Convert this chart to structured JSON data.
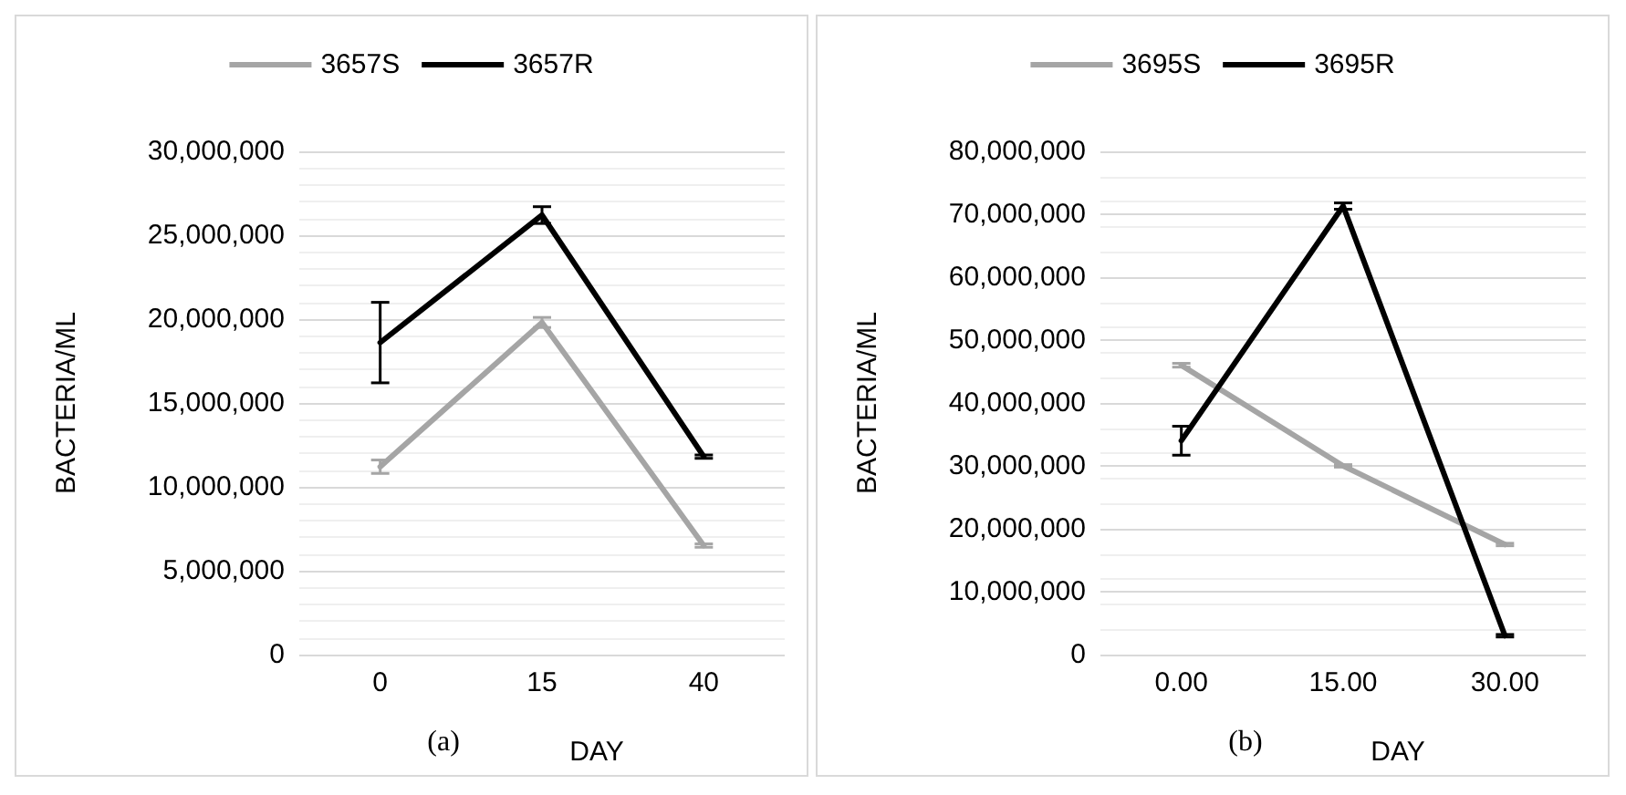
{
  "chart_data": [
    {
      "type": "line",
      "xlabel": "DAY",
      "ylabel": "BACTERIA/ML",
      "categories": [
        "0",
        "15",
        "40"
      ],
      "series": [
        {
          "name": "3657S",
          "color": "#a5a5a5",
          "values": [
            11200000,
            19800000,
            6500000
          ],
          "errors": [
            400000,
            300000,
            100000
          ]
        },
        {
          "name": "3657R",
          "color": "#000000",
          "values": [
            18600000,
            26200000,
            11800000
          ],
          "errors": [
            2400000,
            500000,
            100000
          ]
        }
      ],
      "ylim": [
        0,
        30000000
      ],
      "yticks": [
        0,
        {
          "value": 5000000,
          "label": "5,000,000"
        },
        {
          "value": 10000000,
          "label": "10,000,000"
        },
        {
          "value": 15000000,
          "label": "15,000,000"
        },
        {
          "value": 20000000,
          "label": "20,000,000"
        },
        {
          "value": 25000000,
          "label": "25,000,000"
        },
        {
          "value": 30000000,
          "label": "30,000,000"
        }
      ],
      "grid": true,
      "legend": "top",
      "marker": "none",
      "line_style": "solid",
      "annotations": [
        "(a)"
      ]
    },
    {
      "type": "line",
      "xlabel": "DAY",
      "ylabel": "BACTERIA/ML",
      "categories": [
        "0.00",
        "15.00",
        "30.00"
      ],
      "series": [
        {
          "name": "3695S",
          "color": "#a5a5a5",
          "values": [
            46000000,
            30000000,
            17500000
          ],
          "errors": [
            300000,
            200000,
            200000
          ]
        },
        {
          "name": "3695R",
          "color": "#000000",
          "values": [
            34000000,
            71300000,
            3000000
          ],
          "errors": [
            2300000,
            500000,
            200000
          ]
        }
      ],
      "ylim": [
        0,
        80000000
      ],
      "yticks": [
        0,
        {
          "value": 10000000,
          "label": "10,000,000"
        },
        {
          "value": 20000000,
          "label": "20,000,000"
        },
        {
          "value": 30000000,
          "label": "30,000,000"
        },
        {
          "value": 40000000,
          "label": "40,000,000"
        },
        {
          "value": 50000000,
          "label": "50,000,000"
        },
        {
          "value": 60000000,
          "label": "60,000,000"
        },
        {
          "value": 70000000,
          "label": "70,000,000"
        },
        {
          "value": 80000000,
          "label": "80,000,000"
        }
      ],
      "grid": true,
      "legend": "top",
      "marker": "none",
      "line_style": "solid",
      "annotations": [
        "(b)"
      ]
    }
  ]
}
